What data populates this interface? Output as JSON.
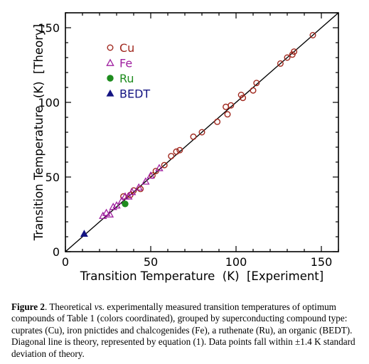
{
  "chart_data": {
    "type": "scatter",
    "xlabel": "Transition Temperature  (K)  [Experiment]",
    "ylabel": "Transition Temperature  (K)  [Theory]",
    "xlim": [
      0,
      160
    ],
    "ylim": [
      0,
      160
    ],
    "xticks": [
      0,
      50,
      100,
      150
    ],
    "yticks": [
      0,
      50,
      100,
      150
    ],
    "grid": false,
    "legend_position": "top-left",
    "diagonal_line": {
      "from": [
        0,
        0
      ],
      "to": [
        160,
        160
      ],
      "color": "#000000"
    },
    "series": [
      {
        "name": "Cu",
        "marker": "open-circle",
        "color": "#a0281e",
        "points": [
          [
            34,
            37
          ],
          [
            38,
            38
          ],
          [
            40,
            41
          ],
          [
            44,
            42
          ],
          [
            51,
            51
          ],
          [
            53,
            54
          ],
          [
            58,
            58
          ],
          [
            62,
            64
          ],
          [
            65,
            67
          ],
          [
            67,
            68
          ],
          [
            75,
            77
          ],
          [
            80,
            80
          ],
          [
            89,
            87
          ],
          [
            94,
            97
          ],
          [
            95,
            92
          ],
          [
            97,
            98
          ],
          [
            103,
            105
          ],
          [
            104,
            103
          ],
          [
            110,
            108
          ],
          [
            112,
            113
          ],
          [
            126,
            126
          ],
          [
            130,
            130
          ],
          [
            133,
            132
          ],
          [
            134,
            134
          ],
          [
            145,
            145
          ]
        ]
      },
      {
        "name": "Fe",
        "marker": "open-triangle",
        "color": "#a020a0",
        "points": [
          [
            22,
            24
          ],
          [
            24,
            26
          ],
          [
            26,
            25
          ],
          [
            28,
            30
          ],
          [
            30,
            31
          ],
          [
            33,
            34
          ],
          [
            35,
            37
          ],
          [
            37,
            37
          ],
          [
            39,
            40
          ],
          [
            43,
            43
          ],
          [
            47,
            47
          ],
          [
            50,
            51
          ],
          [
            55,
            56
          ]
        ]
      },
      {
        "name": "Ru",
        "marker": "filled-circle",
        "color": "#1e8c1e",
        "points": [
          [
            35,
            32
          ]
        ]
      },
      {
        "name": "BEDT",
        "marker": "filled-triangle",
        "color": "#141482",
        "points": [
          [
            11,
            12
          ]
        ]
      }
    ]
  },
  "caption": {
    "label": "Figure 2",
    "text_1": ". Theoretical ",
    "text_vs": "vs.",
    "text_2": " experimentally measured transition temperatures of optimum compounds of Table 1 (colors coordinated), grouped by superconducting compound type: cuprates (Cu), iron pnictides and chalcogenides (Fe), a ruthenate (Ru), an organic (BEDT).  Diagonal line is theory, represented by equation (1).  Data points fall within ±1.4 K standard deviation of theory."
  }
}
